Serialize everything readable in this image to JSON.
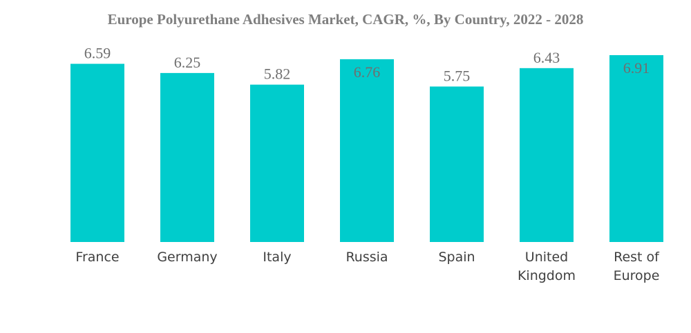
{
  "chart_data": {
    "type": "bar",
    "title": "Europe Polyurethane Adhesives Market, CAGR, %, By Country, 2022 - 2028",
    "categories": [
      "France",
      "Germany",
      "Italy",
      "Russia",
      "Spain",
      "United Kingdom",
      "Rest of Europe"
    ],
    "category_lines": [
      [
        "France"
      ],
      [
        "Germany"
      ],
      [
        "Italy"
      ],
      [
        "Russia"
      ],
      [
        "Spain"
      ],
      [
        "United",
        "Kingdom"
      ],
      [
        "Rest of",
        "Europe"
      ]
    ],
    "values": [
      6.59,
      6.25,
      5.82,
      6.76,
      5.75,
      6.43,
      6.91
    ],
    "value_labels": [
      "6.59",
      "6.25",
      "5.82",
      "6.76",
      "5.75",
      "6.43",
      "6.91"
    ],
    "labels_inside": [
      false,
      false,
      false,
      true,
      false,
      false,
      true
    ],
    "ylim": [
      0,
      6.91
    ],
    "xlabel": "",
    "ylabel": "",
    "grid": false,
    "legend": "none",
    "colors": {
      "bar": "#00cccc",
      "label": "#6f6f6f",
      "category": "#404040",
      "title": "#7f7f7f"
    }
  }
}
